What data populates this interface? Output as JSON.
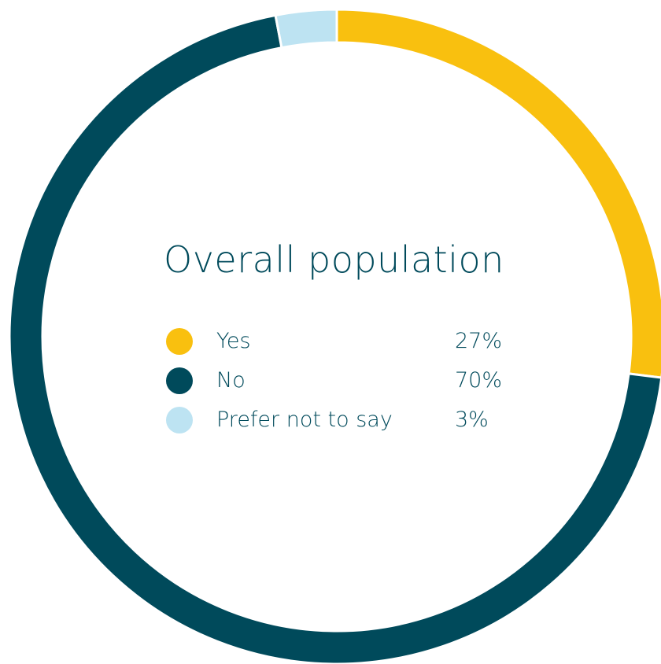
{
  "chart_data": {
    "type": "pie",
    "title": "Overall population",
    "categories": [
      "Yes",
      "No",
      "Prefer not to say"
    ],
    "values": [
      27,
      70,
      3
    ],
    "value_labels": [
      "27%",
      "70%",
      "3%"
    ],
    "colors": [
      "#f9c00f",
      "#004a5b",
      "#bde3f2"
    ],
    "donut": true,
    "legend_position": "center"
  }
}
